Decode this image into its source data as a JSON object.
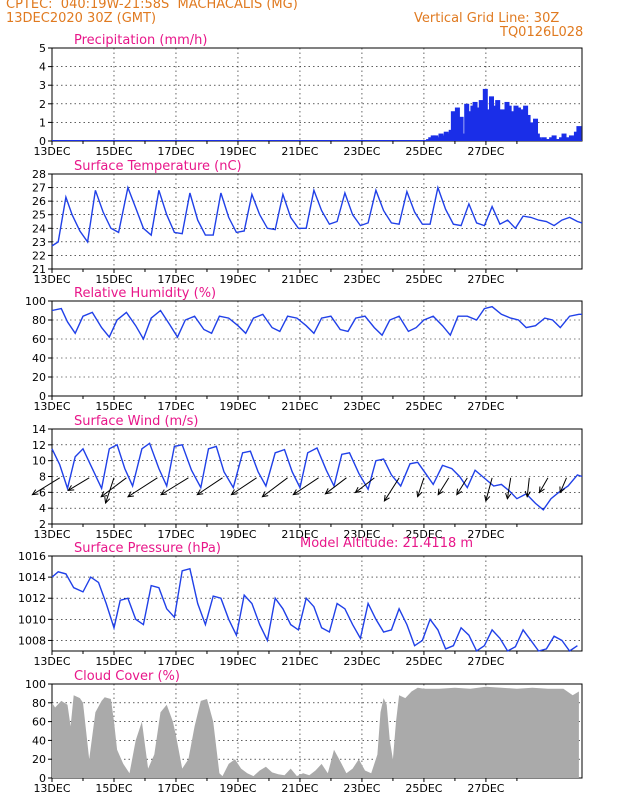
{
  "header": {
    "line1": "CPTEC:  040:19W-21:58S  MACHACALIS (MG)",
    "line2": "13DEC2020 30Z (GMT)",
    "grid_note": "Vertical Grid Line: 30Z",
    "code": "TQ0126L028",
    "model_altitude": "Model Altitude: 21.4118 m"
  },
  "colors": {
    "header": "#e07a20",
    "title": "#e8178a",
    "line": "#2040e8",
    "bars": "#1a2ee8",
    "cloud": "#aaaaaa",
    "wind_arrow": "#000000"
  },
  "chart_data": [
    {
      "type": "bar",
      "title": "Precipitation (mm/h)",
      "x_ticks": [
        "13DEC",
        "15DEC",
        "17DEC",
        "19DEC",
        "21DEC",
        "23DEC",
        "25DEC",
        "27DEC"
      ],
      "y_ticks": [
        "0",
        "1",
        "2",
        "3",
        "4",
        "5"
      ],
      "ylim": [
        0,
        5
      ],
      "x_unit": "day offset from 13DEC",
      "series": [
        {
          "x": [
            12.15,
            12.22,
            12.3,
            12.38,
            12.46,
            12.55,
            12.65,
            12.72,
            12.8,
            12.88,
            12.95,
            13.02,
            13.08,
            13.15,
            13.2,
            13.25,
            13.32,
            13.38,
            13.45,
            13.52,
            13.58,
            13.65,
            13.72,
            13.78,
            13.85,
            13.92,
            13.98,
            14.05,
            14.12,
            14.18,
            14.25,
            14.32,
            14.38,
            14.45,
            14.52,
            14.6,
            14.68,
            14.75,
            14.82,
            14.9,
            14.97,
            15.05,
            15.12,
            15.2,
            15.28,
            15.36,
            15.44,
            15.52,
            15.6,
            15.66,
            15.72,
            15.8,
            15.88,
            15.96,
            16.04,
            16.12,
            16.2,
            16.28,
            16.36,
            16.44,
            16.52,
            16.6,
            16.68,
            16.76,
            16.84,
            16.92,
            17.0
          ],
          "values": [
            0.1,
            0.2,
            0.3,
            0.3,
            0.2,
            0.4,
            0.3,
            0.5,
            0.4,
            0.6,
            1.6,
            1.2,
            1.8,
            0.6,
            1.3,
            0.4,
            0.2,
            2.0,
            1.6,
            1.4,
            1.9,
            2.1,
            1.8,
            1.5,
            2.2,
            1.6,
            2.8,
            1.2,
            1.7,
            2.4,
            1.9,
            0.6,
            2.2,
            1.6,
            1.7,
            1.5,
            2.1,
            1.9,
            0.8,
            1.6,
            1.9,
            1.8,
            1.5,
            1.7,
            1.9,
            1.4,
            1.0,
            0.6,
            1.2,
            0.4,
            0.2,
            0.1,
            0.2,
            0.1,
            0.1,
            0.2,
            0.3,
            0.1,
            0.1,
            0.2,
            0.4,
            0.2,
            0.1,
            0.3,
            0.2,
            0.5,
            0.8
          ]
        }
      ]
    },
    {
      "type": "line",
      "title": "Surface Temperature (nC)",
      "x_ticks": [
        "13DEC",
        "15DEC",
        "17DEC",
        "19DEC",
        "21DEC",
        "23DEC",
        "25DEC",
        "27DEC"
      ],
      "y_ticks": [
        "21",
        "22",
        "23",
        "24",
        "25",
        "26",
        "27",
        "28"
      ],
      "ylim": [
        21,
        28
      ],
      "series": [
        {
          "x": [
            0,
            0.2,
            0.45,
            0.65,
            0.9,
            1.15,
            1.4,
            1.65,
            1.9,
            2.15,
            2.45,
            2.7,
            2.95,
            3.2,
            3.45,
            3.7,
            3.95,
            4.2,
            4.45,
            4.7,
            4.95,
            5.2,
            5.45,
            5.7,
            5.95,
            6.2,
            6.45,
            6.7,
            6.95,
            7.2,
            7.45,
            7.7,
            7.95,
            8.2,
            8.45,
            8.7,
            8.95,
            9.2,
            9.45,
            9.7,
            9.95,
            10.2,
            10.45,
            10.7,
            10.95,
            11.2,
            11.45,
            11.7,
            11.95,
            12.2,
            12.45,
            12.7,
            12.95,
            13.2,
            13.45,
            13.7,
            13.95,
            14.2,
            14.45,
            14.7,
            14.95,
            15.2,
            15.45,
            15.7,
            15.95,
            16.2,
            16.45,
            16.7,
            16.95,
            17.1
          ],
          "values": [
            22.7,
            23.0,
            26.3,
            25.0,
            23.8,
            23.0,
            26.8,
            25.2,
            24.0,
            23.7,
            27.0,
            25.5,
            24.0,
            23.5,
            26.8,
            25.0,
            23.7,
            23.6,
            26.6,
            24.6,
            23.5,
            23.5,
            26.6,
            24.8,
            23.7,
            23.8,
            26.5,
            25.0,
            24.0,
            23.9,
            26.5,
            24.8,
            24.0,
            24.0,
            26.8,
            25.3,
            24.3,
            24.5,
            26.6,
            25.0,
            24.2,
            24.4,
            26.8,
            25.3,
            24.4,
            24.3,
            26.7,
            25.2,
            24.3,
            24.3,
            27.0,
            25.4,
            24.3,
            24.2,
            25.8,
            24.4,
            24.2,
            25.6,
            24.3,
            24.6,
            24.0,
            24.9,
            24.8,
            24.6,
            24.5,
            24.2,
            24.6,
            24.8,
            24.5,
            24.4
          ]
        }
      ]
    },
    {
      "type": "line",
      "title": "Relative Humidity (%)",
      "x_ticks": [
        "13DEC",
        "15DEC",
        "17DEC",
        "19DEC",
        "21DEC",
        "23DEC",
        "25DEC",
        "27DEC"
      ],
      "y_ticks": [
        "0",
        "20",
        "40",
        "60",
        "80",
        "100"
      ],
      "ylim": [
        0,
        100
      ],
      "series": [
        {
          "x": [
            0,
            0.3,
            0.5,
            0.75,
            1.0,
            1.3,
            1.6,
            1.85,
            2.1,
            2.4,
            2.7,
            2.95,
            3.2,
            3.5,
            3.8,
            4.05,
            4.3,
            4.6,
            4.9,
            5.15,
            5.4,
            5.7,
            6.0,
            6.25,
            6.5,
            6.8,
            7.1,
            7.35,
            7.6,
            7.9,
            8.2,
            8.45,
            8.7,
            9.0,
            9.3,
            9.55,
            9.8,
            10.1,
            10.4,
            10.65,
            10.9,
            11.2,
            11.5,
            11.75,
            12.0,
            12.3,
            12.6,
            12.85,
            13.1,
            13.4,
            13.7,
            13.95,
            14.2,
            14.5,
            14.8,
            15.05,
            15.3,
            15.6,
            15.9,
            16.15,
            16.4,
            16.7,
            17.0,
            17.1
          ],
          "values": [
            90,
            92,
            78,
            66,
            84,
            88,
            72,
            62,
            80,
            88,
            74,
            60,
            82,
            90,
            75,
            62,
            80,
            84,
            70,
            66,
            84,
            82,
            74,
            66,
            82,
            86,
            72,
            68,
            84,
            82,
            74,
            66,
            82,
            84,
            70,
            68,
            82,
            84,
            72,
            64,
            80,
            84,
            68,
            72,
            80,
            84,
            74,
            64,
            84,
            84,
            80,
            92,
            94,
            86,
            82,
            80,
            72,
            74,
            82,
            80,
            72,
            84,
            86,
            86
          ]
        }
      ]
    },
    {
      "type": "line",
      "title": "Surface Wind (m/s)",
      "x_ticks": [
        "13DEC",
        "15DEC",
        "17DEC",
        "19DEC",
        "21DEC",
        "23DEC",
        "25DEC",
        "27DEC"
      ],
      "y_ticks": [
        "2",
        "4",
        "6",
        "8",
        "10",
        "12",
        "14"
      ],
      "ylim": [
        2,
        14
      ],
      "series": [
        {
          "x": [
            0,
            0.25,
            0.5,
            0.75,
            1.0,
            1.3,
            1.6,
            1.85,
            2.1,
            2.35,
            2.6,
            2.9,
            3.15,
            3.45,
            3.7,
            3.95,
            4.2,
            4.5,
            4.8,
            5.05,
            5.3,
            5.55,
            5.85,
            6.15,
            6.4,
            6.65,
            6.9,
            7.2,
            7.5,
            7.75,
            8.0,
            8.25,
            8.55,
            8.85,
            9.1,
            9.35,
            9.6,
            9.9,
            10.2,
            10.45,
            10.7,
            10.95,
            11.25,
            11.55,
            11.8,
            12.05,
            12.3,
            12.6,
            12.9,
            13.15,
            13.4,
            13.65,
            13.95,
            14.25,
            14.5,
            14.75,
            15.0,
            15.3,
            15.6,
            15.85,
            16.1,
            16.35,
            16.65,
            16.95,
            17.1
          ],
          "values": [
            11.5,
            9.5,
            6.5,
            10.5,
            11.5,
            9.0,
            6.5,
            11.5,
            12.0,
            9.0,
            6.8,
            11.5,
            12.2,
            9.0,
            6.8,
            11.8,
            12.0,
            8.8,
            6.6,
            11.5,
            11.8,
            8.6,
            6.6,
            11.0,
            11.2,
            8.6,
            6.8,
            11.0,
            11.4,
            8.6,
            6.6,
            11.0,
            11.6,
            8.8,
            6.8,
            10.8,
            11.0,
            8.4,
            6.4,
            10.0,
            10.2,
            8.2,
            6.8,
            9.6,
            9.8,
            8.4,
            7.0,
            9.4,
            9.0,
            8.0,
            6.6,
            8.8,
            7.8,
            6.8,
            7.0,
            6.2,
            5.2,
            5.8,
            4.6,
            3.8,
            5.2,
            6.0,
            6.8,
            8.2,
            8.0
          ]
        }
      ],
      "wind_vectors": {
        "x": [
          0.25,
          1.2,
          2.0,
          2.4,
          3.4,
          4.4,
          5.5,
          6.6,
          7.6,
          8.6,
          9.5,
          10.4,
          11.2,
          12.0,
          12.8,
          13.4,
          14.2,
          14.8,
          15.4,
          16.0,
          16.6
        ],
        "u": [
          -6.5,
          -5.0,
          -2.0,
          -6.0,
          -7.0,
          -6.5,
          -6.0,
          -6.0,
          -6.0,
          -6.0,
          -5.0,
          -4.5,
          -3.5,
          -1.5,
          -2.5,
          -2.5,
          -1.5,
          -0.8,
          -0.5,
          -2.0,
          -1.5
        ],
        "v": [
          -4.0,
          -3.0,
          -6.0,
          -4.5,
          -4.5,
          -4.0,
          -4.0,
          -4.0,
          -4.5,
          -4.0,
          -3.8,
          -3.5,
          -5.5,
          -4.5,
          -4.0,
          -4.0,
          -5.5,
          -5.0,
          -4.5,
          -3.5,
          -3.5
        ]
      }
    },
    {
      "type": "line",
      "title": "Surface Pressure (hPa)",
      "x_ticks": [
        "13DEC",
        "15DEC",
        "17DEC",
        "19DEC",
        "21DEC",
        "23DEC",
        "25DEC",
        "27DEC"
      ],
      "y_ticks": [
        "1008",
        "1010",
        "1012",
        "1014",
        "1016"
      ],
      "ylim": [
        1007,
        1016
      ],
      "series": [
        {
          "x": [
            0,
            0.2,
            0.45,
            0.7,
            1.0,
            1.25,
            1.5,
            1.75,
            2.0,
            2.2,
            2.45,
            2.7,
            2.95,
            3.2,
            3.45,
            3.7,
            3.95,
            4.2,
            4.45,
            4.7,
            4.95,
            5.2,
            5.45,
            5.7,
            5.95,
            6.2,
            6.45,
            6.7,
            6.95,
            7.2,
            7.45,
            7.7,
            7.95,
            8.2,
            8.45,
            8.7,
            8.95,
            9.2,
            9.45,
            9.7,
            9.95,
            10.2,
            10.45,
            10.7,
            10.95,
            11.2,
            11.45,
            11.7,
            11.95,
            12.2,
            12.45,
            12.7,
            12.95,
            13.2,
            13.45,
            13.7,
            13.95,
            14.2,
            14.45,
            14.7,
            14.95,
            15.2,
            15.45,
            15.7,
            15.95,
            16.2,
            16.45,
            16.7,
            16.95
          ],
          "values": [
            1014.0,
            1014.5,
            1014.3,
            1013.0,
            1012.6,
            1014.0,
            1013.5,
            1011.5,
            1009.2,
            1011.8,
            1012.0,
            1010.0,
            1009.5,
            1013.2,
            1013.0,
            1011.0,
            1010.2,
            1014.6,
            1014.8,
            1011.5,
            1009.5,
            1012.2,
            1012.0,
            1010.0,
            1008.5,
            1012.3,
            1011.5,
            1009.5,
            1008.0,
            1012.0,
            1011.0,
            1009.5,
            1009.0,
            1012.0,
            1011.2,
            1009.2,
            1008.8,
            1011.5,
            1011.0,
            1009.5,
            1008.2,
            1011.5,
            1010.0,
            1008.8,
            1009.0,
            1011.0,
            1009.5,
            1007.5,
            1008.0,
            1010.0,
            1009.0,
            1007.2,
            1007.5,
            1009.2,
            1008.5,
            1006.8,
            1007.5,
            1009.0,
            1008.2,
            1006.8,
            1007.4,
            1009.0,
            1008.0,
            1006.6,
            1007.2,
            1008.4,
            1008.0,
            1006.6,
            1007.5
          ]
        }
      ]
    },
    {
      "type": "area",
      "title": "Cloud Cover (%)",
      "x_ticks": [
        "13DEC",
        "15DEC",
        "17DEC",
        "19DEC",
        "21DEC",
        "23DEC",
        "25DEC",
        "27DEC"
      ],
      "y_ticks": [
        "0",
        "20",
        "40",
        "60",
        "80",
        "100"
      ],
      "ylim": [
        0,
        100
      ],
      "series": [
        {
          "x": [
            0,
            0.1,
            0.3,
            0.5,
            0.6,
            0.7,
            0.9,
            1.0,
            1.2,
            1.4,
            1.6,
            1.7,
            1.9,
            2.0,
            2.1,
            2.3,
            2.5,
            2.7,
            2.9,
            3.1,
            3.3,
            3.5,
            3.7,
            3.9,
            4.0,
            4.2,
            4.4,
            4.6,
            4.8,
            5.0,
            5.2,
            5.4,
            5.5,
            5.7,
            5.9,
            6.1,
            6.3,
            6.5,
            6.7,
            6.9,
            7.1,
            7.3,
            7.5,
            7.7,
            7.9,
            8.1,
            8.3,
            8.5,
            8.7,
            8.9,
            9.1,
            9.3,
            9.5,
            9.7,
            9.9,
            10.1,
            10.3,
            10.5,
            10.6,
            10.7,
            10.8,
            10.9,
            11.0,
            11.1,
            11.2,
            11.4,
            11.6,
            11.8,
            12.0,
            12.5,
            13.0,
            13.5,
            14.0,
            14.5,
            15.0,
            15.5,
            16.0,
            16.5,
            16.8,
            17.0
          ],
          "values": [
            80,
            75,
            82,
            78,
            55,
            88,
            85,
            80,
            20,
            70,
            82,
            86,
            84,
            60,
            30,
            15,
            5,
            40,
            60,
            10,
            25,
            70,
            78,
            60,
            45,
            10,
            20,
            55,
            82,
            84,
            60,
            5,
            2,
            15,
            20,
            10,
            5,
            2,
            8,
            12,
            6,
            4,
            3,
            10,
            2,
            5,
            3,
            8,
            15,
            5,
            30,
            18,
            5,
            10,
            20,
            8,
            5,
            25,
            70,
            85,
            78,
            40,
            20,
            60,
            88,
            85,
            92,
            96,
            95,
            95,
            96,
            95,
            97,
            96,
            95,
            96,
            95,
            95,
            88,
            92
          ]
        }
      ]
    }
  ]
}
